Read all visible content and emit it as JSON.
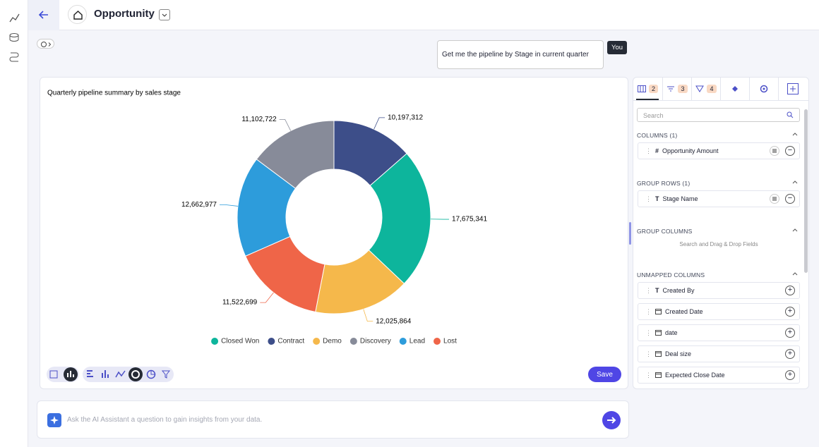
{
  "header": {
    "title": "Opportunity"
  },
  "chat": {
    "message": "Get me the pipeline by Stage in current quarter",
    "author": "You"
  },
  "chart_data": {
    "type": "pie",
    "donut": true,
    "title": "Quarterly pipeline summary by sales stage",
    "categories": [
      "Contract",
      "Closed Won",
      "Demo",
      "Lost",
      "Lead",
      "Discovery"
    ],
    "values": [
      10197312,
      17675341,
      12025864,
      11522699,
      12662977,
      11102722
    ],
    "value_labels": [
      "10,197,312",
      "17,675,341",
      "12,025,864",
      "11,522,699",
      "12,662,977",
      "11,102,722"
    ],
    "colors": [
      "#3d4e89",
      "#0db59c",
      "#f5b84b",
      "#ef6548",
      "#2d9cdb",
      "#878b99"
    ]
  },
  "toolbar": {
    "save": "Save"
  },
  "assistant": {
    "placeholder": "Ask the AI Assistant a question to gain insights from your data."
  },
  "panel": {
    "tab_counts": [
      "2",
      "3",
      "4"
    ],
    "search": "Search",
    "sections": [
      {
        "title": "COLUMNS (1)",
        "fields": [
          {
            "icon": "#",
            "name": "Opportunity Amount"
          }
        ]
      },
      {
        "title": "GROUP ROWS (1)",
        "fields": [
          {
            "icon": "T",
            "name": "Stage Name"
          }
        ]
      },
      {
        "title": "GROUP COLUMNS",
        "hint": "Search and Drag & Drop Fields"
      },
      {
        "title": "UNMAPPED COLUMNS",
        "fields": [
          {
            "icon": "T",
            "name": "Created By"
          },
          {
            "name": "Created Date"
          },
          {
            "name": "date"
          },
          {
            "name": "Deal size"
          },
          {
            "name": "Expected Close Date"
          }
        ]
      }
    ]
  }
}
